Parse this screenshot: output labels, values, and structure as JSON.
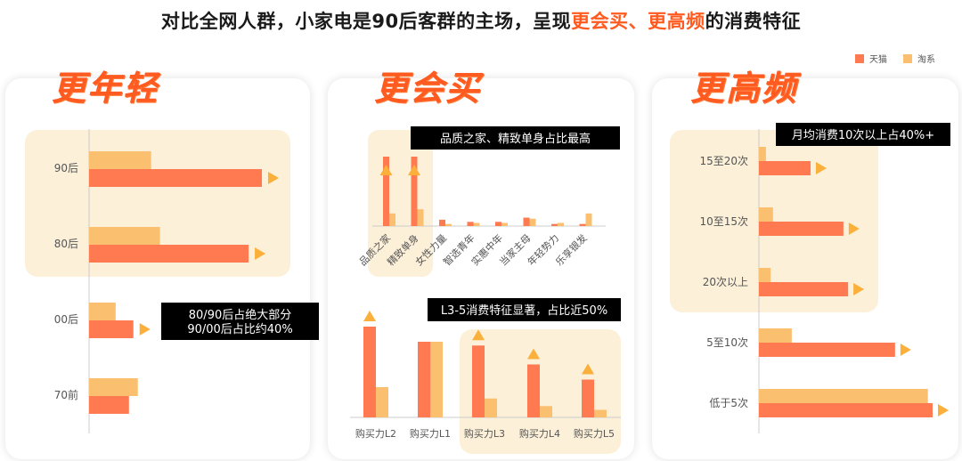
{
  "header": {
    "title_part1": "对比全网人群，小家电是90后客群的主场，呈现",
    "title_hl1": "更会买",
    "title_sep": "、",
    "title_hl2": "更高频",
    "title_part2": "的消费特征"
  },
  "legend": [
    {
      "name": "天猫",
      "color": "#ff7a50"
    },
    {
      "name": "淘系",
      "color": "#fbbf70"
    }
  ],
  "colors": {
    "tmall": "#ff7a50",
    "taobao": "#fbbf70",
    "highlight": "#fdf0d8",
    "arrow": "#fbb03b",
    "callout": "#000000"
  },
  "panels": {
    "left": {
      "heading": "更年轻"
    },
    "middle": {
      "heading": "更会买"
    },
    "right": {
      "heading": "更高频"
    }
  },
  "chart_data": [
    {
      "id": "age",
      "type": "bar",
      "orientation": "horizontal",
      "categories": [
        "90后",
        "80后",
        "00后",
        "70前"
      ],
      "series": [
        {
          "name": "天猫",
          "values": [
            39,
            36,
            10,
            9
          ]
        },
        {
          "name": "淘系",
          "values": [
            14,
            16,
            6,
            11
          ]
        }
      ],
      "highlight": [
        "90后",
        "80后"
      ],
      "callout": [
        "80/90后占绝大部分",
        "90/00后占比约40%"
      ]
    },
    {
      "id": "persona",
      "type": "bar",
      "categories": [
        "品质之家",
        "精致单身",
        "女性力量",
        "智选青年",
        "实惠中年",
        "当家主母",
        "年轻势力",
        "乐享银发"
      ],
      "series": [
        {
          "name": "天猫",
          "values": [
            33,
            33,
            3,
            2,
            2,
            4,
            1,
            1
          ]
        },
        {
          "name": "淘系",
          "values": [
            6,
            8,
            1,
            1.5,
            1.5,
            3.5,
            1.5,
            6
          ]
        }
      ],
      "highlight": [
        "品质之家",
        "精致单身"
      ],
      "callout": [
        "品质之家、精致单身占比最高"
      ]
    },
    {
      "id": "purchase_power",
      "type": "bar",
      "categories": [
        "购买力L2",
        "购买力L1",
        "购买力L3",
        "购买力L4",
        "购买力L5"
      ],
      "series": [
        {
          "name": "天猫",
          "values": [
            24,
            20,
            19,
            14,
            10
          ]
        },
        {
          "name": "淘系",
          "values": [
            8,
            20,
            5,
            3,
            2
          ]
        }
      ],
      "highlight": [
        "购买力L3",
        "购买力L4",
        "购买力L5"
      ],
      "callout": [
        "L3-5消费特征显著，占比近50%"
      ]
    },
    {
      "id": "frequency",
      "type": "bar",
      "orientation": "horizontal",
      "categories": [
        "15至20次",
        "10至15次",
        "20次以上",
        "5至10次",
        "低于5次"
      ],
      "series": [
        {
          "name": "天猫",
          "values": [
            11,
            18,
            19,
            29,
            37
          ]
        },
        {
          "name": "淘系",
          "values": [
            1.5,
            3,
            2.5,
            7,
            36
          ]
        }
      ],
      "highlight": [
        "15至20次",
        "10至15次",
        "20次以上"
      ],
      "callout": [
        "月均消费10次以上占40%+"
      ]
    }
  ]
}
